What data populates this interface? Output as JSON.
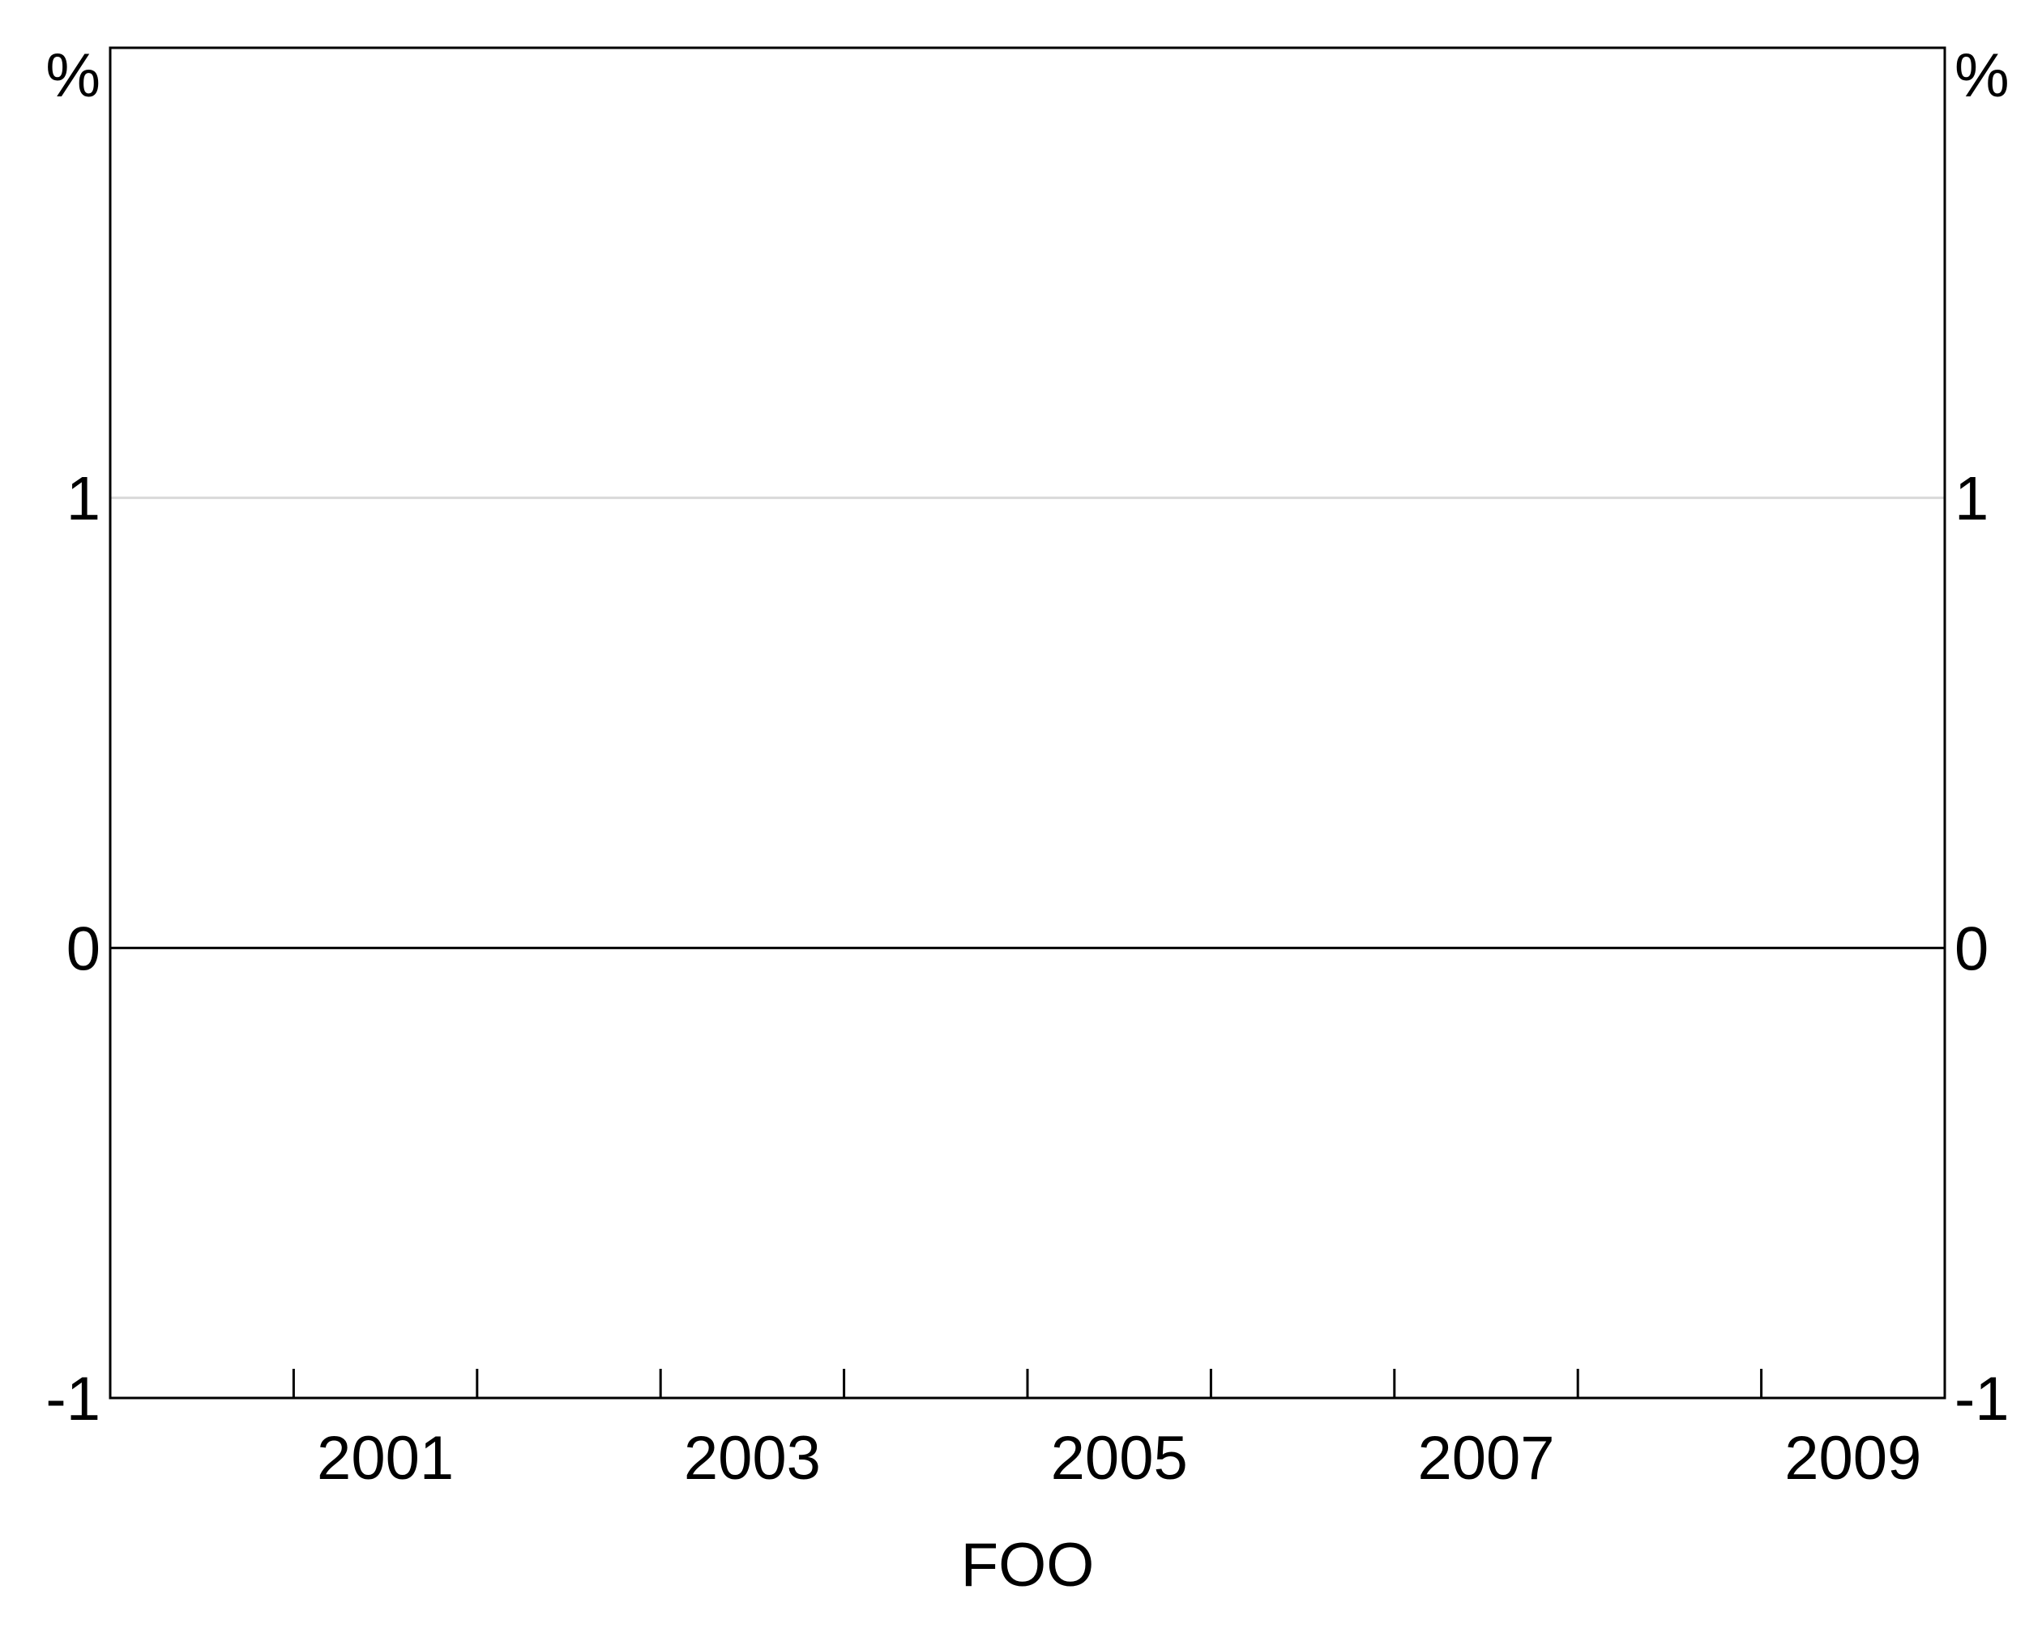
{
  "chart_data": {
    "type": "line",
    "title": "",
    "xlabel": "FOO",
    "ylabel": "",
    "y_unit_left": "%",
    "y_unit_right": "%",
    "xlim": [
      2000,
      2010
    ],
    "ylim": [
      -1,
      2
    ],
    "x_ticks": [
      2000,
      2001,
      2002,
      2003,
      2004,
      2005,
      2006,
      2007,
      2008,
      2009,
      2010
    ],
    "x_tick_labels": [
      "2001",
      "2003",
      "2005",
      "2007",
      "2009"
    ],
    "y_ticks": [
      -1,
      0,
      1
    ],
    "y_tick_labels": [
      "-1",
      "0",
      "1"
    ],
    "gridlines_y": [
      1
    ],
    "zero_line": 0,
    "grid": true,
    "series": [],
    "colors": {
      "axis": "#000000",
      "grid": "#d9d9d9",
      "background": "#ffffff"
    }
  }
}
